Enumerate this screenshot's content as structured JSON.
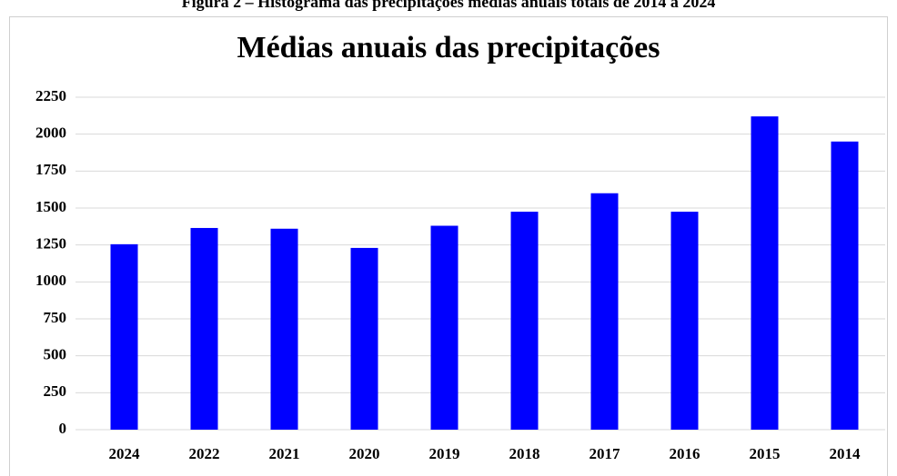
{
  "caption": "Figura 2 – Histograma das precipitações médias anuais totais de 2014 a 2024",
  "chart_data": {
    "type": "bar",
    "title": "Médias anuais das precipitações",
    "categories": [
      "2024",
      "2022",
      "2021",
      "2020",
      "2019",
      "2018",
      "2017",
      "2016",
      "2015",
      "2014"
    ],
    "values": [
      1255,
      1365,
      1360,
      1230,
      1380,
      1475,
      1600,
      1475,
      2120,
      1950
    ],
    "color": "#0000ff",
    "ylim": [
      0,
      2250
    ],
    "yticks": [
      0,
      250,
      500,
      750,
      1000,
      1250,
      1500,
      1750,
      2000,
      2250
    ],
    "grid": true
  }
}
